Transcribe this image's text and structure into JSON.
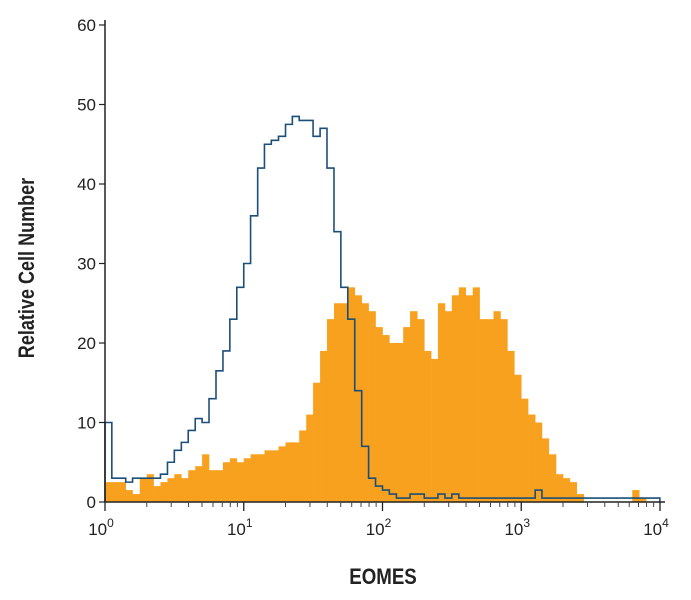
{
  "chart_data": {
    "type": "area",
    "title": "",
    "xlabel": "EOMES",
    "ylabel": "Relative Cell Number",
    "xscale": "log",
    "xlim": [
      1,
      10000
    ],
    "ylim": [
      0,
      60
    ],
    "grid": false,
    "x_ticks": [
      {
        "base": "10",
        "exp": "0"
      },
      {
        "base": "10",
        "exp": "1"
      },
      {
        "base": "10",
        "exp": "2"
      },
      {
        "base": "10",
        "exp": "3"
      },
      {
        "base": "10",
        "exp": "4"
      }
    ],
    "y_ticks": [
      "0",
      "10",
      "20",
      "30",
      "40",
      "50",
      "60"
    ],
    "colors": {
      "stained": "#F7A11F",
      "isotype": "#1B4F7A"
    },
    "bin_x": [
      1.0,
      1.12,
      1.26,
      1.41,
      1.58,
      1.78,
      2.0,
      2.24,
      2.51,
      2.82,
      3.16,
      3.55,
      3.98,
      4.47,
      5.01,
      5.62,
      6.31,
      7.08,
      7.94,
      8.91,
      10.0,
      11.2,
      12.6,
      14.1,
      15.8,
      17.8,
      20.0,
      22.4,
      25.1,
      28.2,
      31.6,
      35.5,
      39.8,
      44.7,
      50.1,
      56.2,
      63.1,
      70.8,
      79.4,
      89.1,
      100,
      112,
      126,
      141,
      158,
      178,
      200,
      224,
      251,
      282,
      316,
      355,
      398,
      447,
      501,
      562,
      631,
      708,
      794,
      891,
      1000,
      1120,
      1260,
      1410,
      1580,
      1780,
      2000,
      2240,
      2510,
      2820,
      3160,
      3550,
      3980,
      4470,
      5010,
      5620,
      6310,
      7080,
      7940,
      8910
    ],
    "series": [
      {
        "style": "filled",
        "color": "#F7A11F",
        "values": [
          2.5,
          2.5,
          2.5,
          1.5,
          1,
          3,
          3.5,
          2,
          2.5,
          3,
          3.5,
          3,
          4,
          4.5,
          6,
          4,
          4,
          5,
          5.5,
          5,
          5.5,
          6,
          6,
          6.5,
          6.5,
          7,
          7.5,
          7.5,
          9,
          11,
          15,
          19,
          23,
          25,
          25,
          27,
          26,
          25,
          24,
          22,
          21,
          20,
          20,
          22,
          24,
          23,
          19,
          18,
          25,
          24,
          26,
          27,
          26,
          27,
          23,
          23,
          24,
          23,
          19,
          16,
          13,
          11,
          10,
          8,
          6,
          3.5,
          3,
          2.5,
          1,
          0,
          0,
          0,
          0,
          0,
          0,
          0,
          1.5,
          0.5,
          0,
          0
        ]
      },
      {
        "style": "outline",
        "color": "#1B4F7A",
        "values": [
          10,
          3,
          3,
          2.5,
          3,
          3,
          3,
          3,
          3.5,
          5,
          6.5,
          7.5,
          9,
          10.5,
          10,
          13,
          16.5,
          19,
          23,
          27,
          30,
          36,
          42,
          45,
          45.5,
          46,
          47.5,
          48.5,
          48,
          48,
          46,
          47,
          42,
          34,
          27,
          23,
          14,
          7,
          3,
          2,
          1.5,
          1,
          0.5,
          0.5,
          1,
          1,
          0.5,
          0.5,
          1,
          0.5,
          1,
          0.5,
          0.5,
          0.5,
          0.5,
          0.5,
          0.5,
          0.5,
          0.5,
          0.5,
          0.5,
          0.5,
          1.5,
          0.5,
          0.5,
          0.5,
          0.5,
          0.5,
          0.5,
          0.5,
          0.5,
          0.5,
          0.5,
          0.5,
          0.5,
          0.5,
          0.5,
          0.5,
          0.5,
          0.5
        ]
      }
    ]
  }
}
